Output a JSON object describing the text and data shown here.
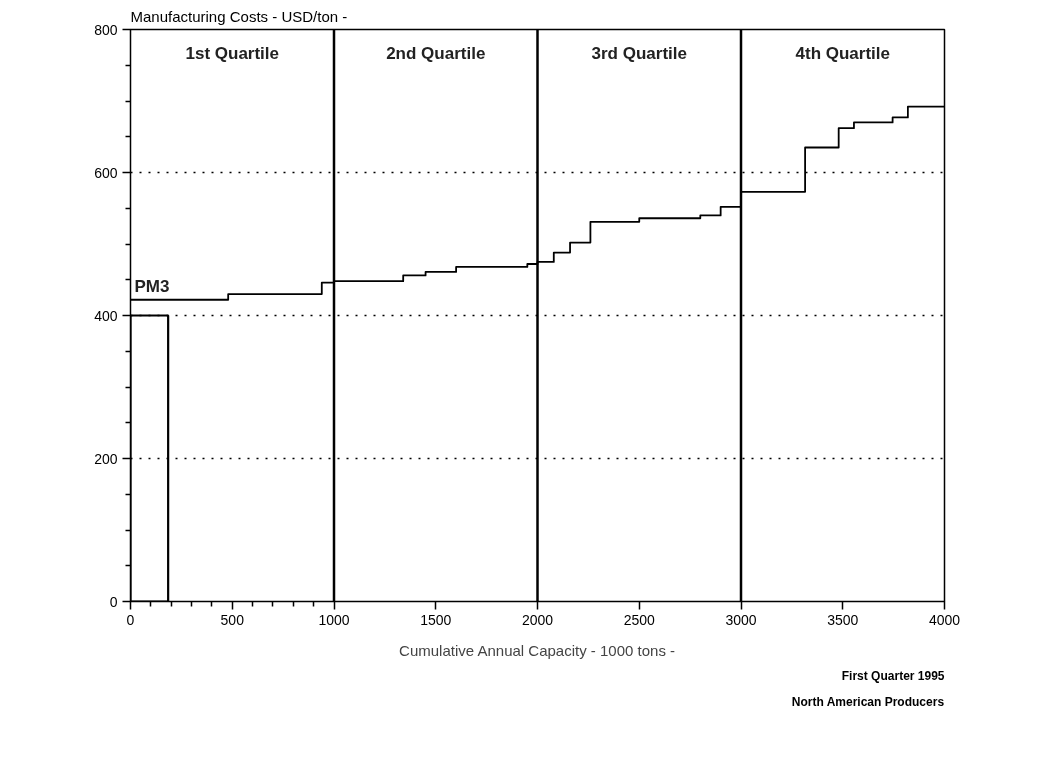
{
  "chart_data": {
    "type": "step",
    "xlabel": "Cumulative Annual Capacity - 1000 tons -",
    "ylabel": "Manufacturing Costs - USD/ton -",
    "xlim": [
      0,
      4000
    ],
    "ylim": [
      0,
      800
    ],
    "xticks": [
      0,
      500,
      1000,
      1500,
      2000,
      2500,
      3000,
      3500,
      4000,
      {
        "value": 100,
        "label": null
      },
      {
        "value": 200,
        "label": null
      },
      {
        "value": 300,
        "label": null
      },
      {
        "value": 400,
        "label": null
      },
      {
        "value": 600,
        "label": null
      },
      {
        "value": 700,
        "label": null
      },
      {
        "value": 800,
        "label": null
      },
      {
        "value": 900,
        "label": null
      }
    ],
    "yticks": [
      0,
      200,
      400,
      600,
      800,
      {
        "value": 50,
        "label": null
      },
      {
        "value": 100,
        "label": null
      },
      {
        "value": 150,
        "label": null
      },
      {
        "value": 250,
        "label": null
      },
      {
        "value": 300,
        "label": null
      },
      {
        "value": 350,
        "label": null
      },
      {
        "value": 450,
        "label": null
      },
      {
        "value": 500,
        "label": null
      },
      {
        "value": 550,
        "label": null
      },
      {
        "value": 650,
        "label": null
      },
      {
        "value": 700,
        "label": null
      },
      {
        "value": 750,
        "label": null
      }
    ],
    "grid": "y",
    "series": [
      {
        "color": "#000000",
        "x": [
          0,
          480,
          940,
          1000,
          1340,
          1450,
          1600,
          1950,
          2000,
          2080,
          2160,
          2260,
          2500,
          2800,
          2900,
          3000,
          3315,
          3480,
          3555,
          3745,
          3820,
          4000
        ],
        "values": [
          422,
          430,
          446,
          448,
          456,
          461,
          468,
          472,
          475,
          488,
          502,
          531,
          536,
          540,
          552,
          573,
          635,
          662,
          670,
          677,
          692,
          692
        ]
      },
      {
        "type": "histogram",
        "color": "#000000",
        "bins": [
          0,
          185
        ],
        "values": [
          400
        ]
      }
    ],
    "ref_lines": [
      {
        "axis": "x",
        "value": 1000
      },
      {
        "axis": "x",
        "value": 2000
      },
      {
        "axis": "x",
        "value": 3000
      }
    ],
    "annotations": [
      "1st Quartile",
      "2nd Quartile",
      "3rd Quartile",
      "4th Quartile",
      {
        "text": "PM3",
        "x": 0,
        "y": 422
      },
      "First Quarter 1995",
      "North American Producers"
    ]
  }
}
